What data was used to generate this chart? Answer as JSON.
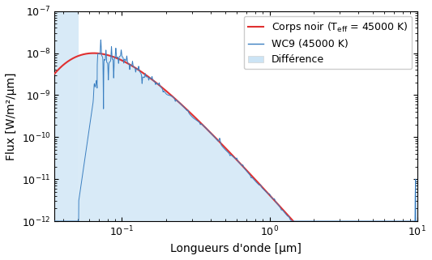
{
  "title": "",
  "xlabel": "Longueurs d'onde [μm]",
  "ylabel": "Flux [W/m²/μm]",
  "T_eff": 45000,
  "xlim": [
    0.035,
    10.0
  ],
  "ylim": [
    1e-12,
    1e-07
  ],
  "blackbody_color": "#e03030",
  "wc9_color": "#3a7fc1",
  "fill_color": "#cce4f5",
  "fill_alpha": 0.75,
  "legend_fontsize": 9,
  "tick_labelsize": 9,
  "axis_labelsize": 10,
  "figsize": [
    5.33,
    3.21
  ],
  "dpi": 100,
  "bb_scale": 1e-08
}
